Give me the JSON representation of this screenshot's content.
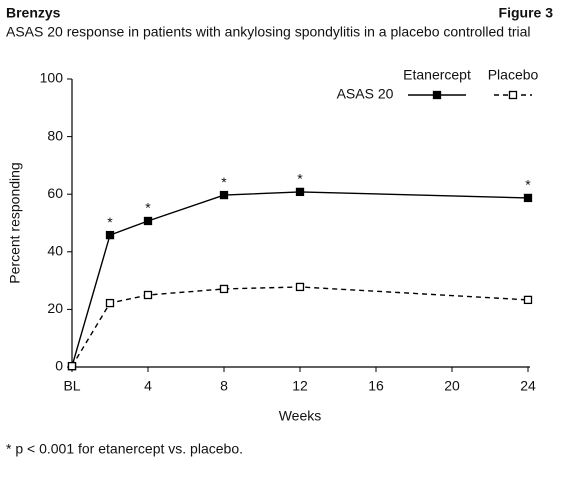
{
  "header": {
    "title": "Brenzys",
    "figure": "Figure 3"
  },
  "chart_data": {
    "type": "line",
    "title": "ASAS 20 response in patients with ankylosing spondylitis in a placebo controlled trial",
    "x": [
      0,
      2,
      4,
      8,
      12,
      24
    ],
    "series": [
      {
        "name": "Etanercept",
        "color": "#000000",
        "line_style": "solid",
        "marker": "filled-square",
        "values": [
          0.3,
          45.8,
          50.7,
          59.7,
          60.8,
          58.7
        ],
        "markers": [
          null,
          "*",
          "*",
          "*",
          "*",
          "*"
        ]
      },
      {
        "name": "Placebo",
        "color": "#000000",
        "line_style": "dashed",
        "marker": "open-square",
        "values": [
          0.3,
          22.2,
          25,
          27.1,
          27.8,
          23.3
        ]
      }
    ],
    "legend_title": "ASAS 20",
    "legend": "upper right",
    "x_label": "Weeks",
    "y_label": "Percent responding",
    "xlim": [
      0,
      24
    ],
    "xticks": [
      {
        "value": 0,
        "label": "BL"
      },
      4,
      8,
      12,
      16,
      20,
      24
    ],
    "ylim": [
      0,
      100
    ],
    "yticks": [
      0,
      20,
      40,
      60,
      80,
      100
    ],
    "grid": false
  },
  "footnote": "* p < 0.001 for etanercept vs. placebo."
}
